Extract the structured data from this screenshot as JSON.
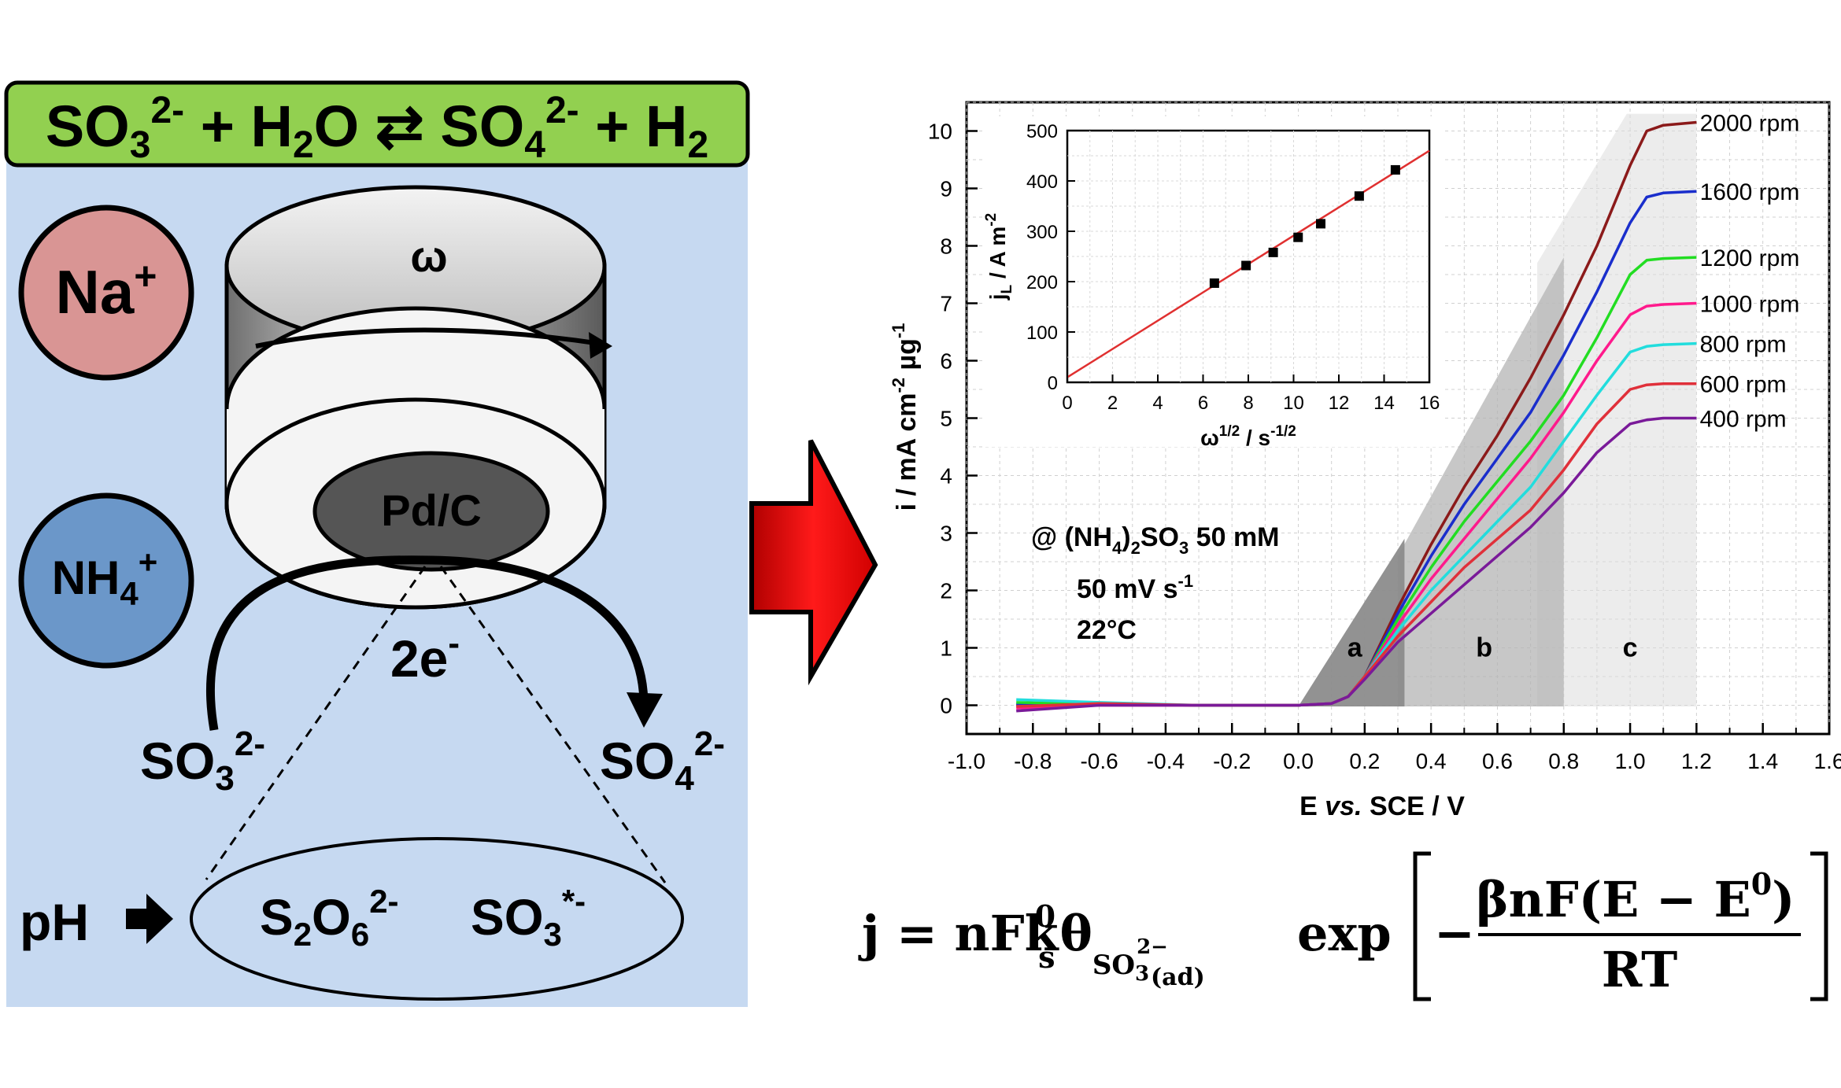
{
  "scheme": {
    "equation": {
      "sulfite": "SO",
      "sulfite_sub": "3",
      "sulfite_sup": "2-",
      "plus1": "+",
      "water": "H",
      "water_sub": "2",
      "water_o": "O",
      "arrow": "⇄",
      "sulfate": "SO",
      "sulfate_sub": "4",
      "sulfate_sup": "2-",
      "plus2": "+",
      "hydrogen": "H",
      "hydrogen_sub": "2"
    },
    "cation_na": {
      "symbol": "Na",
      "charge": "+"
    },
    "cation_nh4": {
      "symbol": "NH",
      "sub": "4",
      "charge": "+"
    },
    "electrode_rotation": "ω",
    "electrode_label": "Pd/C",
    "electrons": {
      "text": "2e",
      "sup": "-"
    },
    "reactant": {
      "text": "SO",
      "sub": "3",
      "sup": "2-"
    },
    "product": {
      "text": "SO",
      "sub": "4",
      "sup": "2-"
    },
    "ph_label": "pH",
    "intermediate_1": {
      "text": "S",
      "sub1": "2",
      "text2": "O",
      "sub2": "6",
      "sup": "2-"
    },
    "intermediate_2": {
      "text": "SO",
      "sub": "3",
      "sup": "*-"
    },
    "colors": {
      "banner": "#92d050",
      "panel": "#c6d9f1",
      "na": "#d99594",
      "nh4": "#6b97c9",
      "arrow": "#e00000"
    }
  },
  "chart_data": [
    {
      "type": "line",
      "xlabel": "E vs. SCE / V",
      "xlabel_parts": {
        "a": "E ",
        "b": "vs.",
        "c": " SCE / V"
      },
      "ylabel": "i / mA cm-2 µg-1",
      "ylabel_parts": {
        "a": "i / mA cm",
        "b": "-2",
        "c": " µg",
        "d": "-1"
      },
      "xlim": [
        -1.0,
        1.6
      ],
      "ylim": [
        -0.5,
        10.5
      ],
      "xticks": [
        -1.0,
        -0.8,
        -0.6,
        -0.4,
        -0.2,
        0.0,
        0.2,
        0.4,
        0.6,
        0.8,
        1.0,
        1.2,
        1.4,
        1.6
      ],
      "xtick_labels": [
        "-1.0",
        "-0.8",
        "-0.6",
        "-0.4",
        "-0.2",
        "0.0",
        "0.2",
        "0.4",
        "0.6",
        "0.8",
        "1.0",
        "1.2",
        "1.4",
        "1.6"
      ],
      "yticks": [
        0,
        1,
        2,
        3,
        4,
        5,
        6,
        7,
        8,
        9,
        10
      ],
      "ytick_labels": [
        "0",
        "1",
        "2",
        "3",
        "4",
        "5",
        "6",
        "7",
        "8",
        "9",
        "10"
      ],
      "grid": true,
      "annotations": {
        "electrolyte_at": "@ (NH",
        "electrolyte_sub": "4",
        "electrolyte_rest": ")",
        "electrolyte_sub2": "2",
        "electrolyte_end": "SO",
        "electrolyte_sub3": "3",
        "electrolyte_conc": " 50 mM",
        "scan_rate": "50 mV s",
        "scan_rate_sup": "-1",
        "temperature": "22°C",
        "region_a": "a",
        "region_b": "b",
        "region_c": "c"
      },
      "regions": [
        {
          "label": "a",
          "x": [
            0.0,
            0.32
          ],
          "color": "#8c8c8c"
        },
        {
          "label": "b",
          "x": [
            0.32,
            0.8
          ],
          "color": "#b4b4b4"
        },
        {
          "label": "c",
          "x": [
            0.8,
            1.2
          ],
          "color": "#dcdcdc"
        }
      ],
      "series": [
        {
          "name": "2000 rpm",
          "color": "#8b1a1a",
          "x": [
            -0.85,
            -0.6,
            -0.3,
            0.0,
            0.1,
            0.15,
            0.2,
            0.3,
            0.4,
            0.5,
            0.6,
            0.7,
            0.8,
            0.9,
            1.0,
            1.05,
            1.1,
            1.2
          ],
          "y": [
            0.0,
            0.02,
            0.0,
            0.0,
            0.03,
            0.15,
            0.5,
            1.7,
            2.8,
            3.8,
            4.7,
            5.7,
            6.8,
            8.0,
            9.4,
            10.0,
            10.1,
            10.15
          ]
        },
        {
          "name": "1600 rpm",
          "color": "#1a2ecc",
          "x": [
            -0.85,
            -0.6,
            -0.3,
            0.0,
            0.1,
            0.15,
            0.2,
            0.3,
            0.4,
            0.5,
            0.6,
            0.7,
            0.8,
            0.9,
            1.0,
            1.05,
            1.1,
            1.2
          ],
          "y": [
            0.02,
            0.02,
            0.0,
            0.0,
            0.03,
            0.15,
            0.5,
            1.6,
            2.6,
            3.5,
            4.3,
            5.1,
            6.1,
            7.2,
            8.4,
            8.85,
            8.92,
            8.95
          ]
        },
        {
          "name": "1200 rpm",
          "color": "#22dd22",
          "x": [
            -0.85,
            -0.6,
            -0.3,
            0.0,
            0.1,
            0.15,
            0.2,
            0.3,
            0.4,
            0.5,
            0.6,
            0.7,
            0.8,
            0.9,
            1.0,
            1.05,
            1.1,
            1.2
          ],
          "y": [
            0.05,
            0.02,
            0.0,
            0.0,
            0.03,
            0.15,
            0.5,
            1.5,
            2.4,
            3.2,
            3.9,
            4.6,
            5.4,
            6.4,
            7.5,
            7.75,
            7.78,
            7.8
          ]
        },
        {
          "name": "1000 rpm",
          "color": "#ff1a8c",
          "x": [
            -0.85,
            -0.6,
            -0.3,
            0.0,
            0.1,
            0.15,
            0.2,
            0.3,
            0.4,
            0.5,
            0.6,
            0.7,
            0.8,
            0.9,
            1.0,
            1.05,
            1.1,
            1.2
          ],
          "y": [
            -0.05,
            0.0,
            0.0,
            0.0,
            0.03,
            0.15,
            0.5,
            1.4,
            2.2,
            2.9,
            3.6,
            4.3,
            5.1,
            6.0,
            6.8,
            6.95,
            6.98,
            7.0
          ]
        },
        {
          "name": "800 rpm",
          "color": "#22dddd",
          "x": [
            -0.85,
            -0.6,
            -0.3,
            0.0,
            0.1,
            0.15,
            0.2,
            0.3,
            0.4,
            0.5,
            0.6,
            0.7,
            0.8,
            0.9,
            1.0,
            1.05,
            1.1,
            1.2
          ],
          "y": [
            0.1,
            0.05,
            0.0,
            0.0,
            0.03,
            0.15,
            0.5,
            1.3,
            2.0,
            2.6,
            3.2,
            3.8,
            4.6,
            5.4,
            6.15,
            6.25,
            6.28,
            6.3
          ]
        },
        {
          "name": "600 rpm",
          "color": "#e0303a",
          "x": [
            -0.85,
            -0.6,
            -0.3,
            0.0,
            0.1,
            0.15,
            0.2,
            0.3,
            0.4,
            0.5,
            0.6,
            0.7,
            0.8,
            0.9,
            1.0,
            1.05,
            1.1,
            1.2
          ],
          "y": [
            -0.02,
            0.03,
            0.0,
            0.0,
            0.03,
            0.15,
            0.5,
            1.2,
            1.8,
            2.4,
            2.9,
            3.4,
            4.1,
            4.9,
            5.5,
            5.58,
            5.6,
            5.6
          ]
        },
        {
          "name": "400 rpm",
          "color": "#7a1a99",
          "x": [
            -0.85,
            -0.6,
            -0.3,
            0.0,
            0.1,
            0.15,
            0.2,
            0.3,
            0.4,
            0.5,
            0.6,
            0.7,
            0.8,
            0.9,
            1.0,
            1.05,
            1.1,
            1.2
          ],
          "y": [
            -0.1,
            0.0,
            0.0,
            0.0,
            0.03,
            0.15,
            0.45,
            1.1,
            1.6,
            2.1,
            2.6,
            3.1,
            3.7,
            4.4,
            4.9,
            4.97,
            5.0,
            5.0
          ]
        }
      ]
    },
    {
      "type": "scatter",
      "xlabel": "ω1/2 / s-1/2",
      "xlabel_parts": {
        "a": "ω",
        "b": "1/2",
        "c": " / s",
        "d": "-1/2"
      },
      "ylabel": "jL / A m-2",
      "ylabel_parts": {
        "a": "j",
        "b": "L",
        "c": " / A m",
        "d": "-2"
      },
      "xlim": [
        0,
        16
      ],
      "ylim": [
        0,
        500
      ],
      "xticks": [
        0,
        2,
        4,
        6,
        8,
        10,
        12,
        14,
        16
      ],
      "xtick_labels": [
        "0",
        "2",
        "4",
        "6",
        "8",
        "10",
        "12",
        "14",
        "16"
      ],
      "yticks": [
        0,
        100,
        200,
        300,
        400,
        500
      ],
      "ytick_labels": [
        "0",
        "100",
        "200",
        "300",
        "400",
        "500"
      ],
      "grid": true,
      "points": {
        "x": [
          6.5,
          7.9,
          9.1,
          10.2,
          11.2,
          12.9,
          14.5
        ],
        "y": [
          197,
          232,
          258,
          288,
          315,
          370,
          422
        ]
      },
      "fit": {
        "color": "#e03030",
        "x": [
          0,
          16
        ],
        "y": [
          10,
          460
        ]
      }
    }
  ],
  "formula": {
    "lhs": "j = nFk",
    "k_sup": "0",
    "k_sub": "s",
    "theta": "θ",
    "theta_sub": "SO",
    "theta_sub_3": "3",
    "theta_sub_sup": "2−",
    "theta_sub_ad": "(ad)",
    "exp": "exp",
    "minus": "−",
    "numerator_a": "βnF(E − E",
    "numerator_sup": "0",
    "numerator_b": ")",
    "denominator": "RT"
  }
}
